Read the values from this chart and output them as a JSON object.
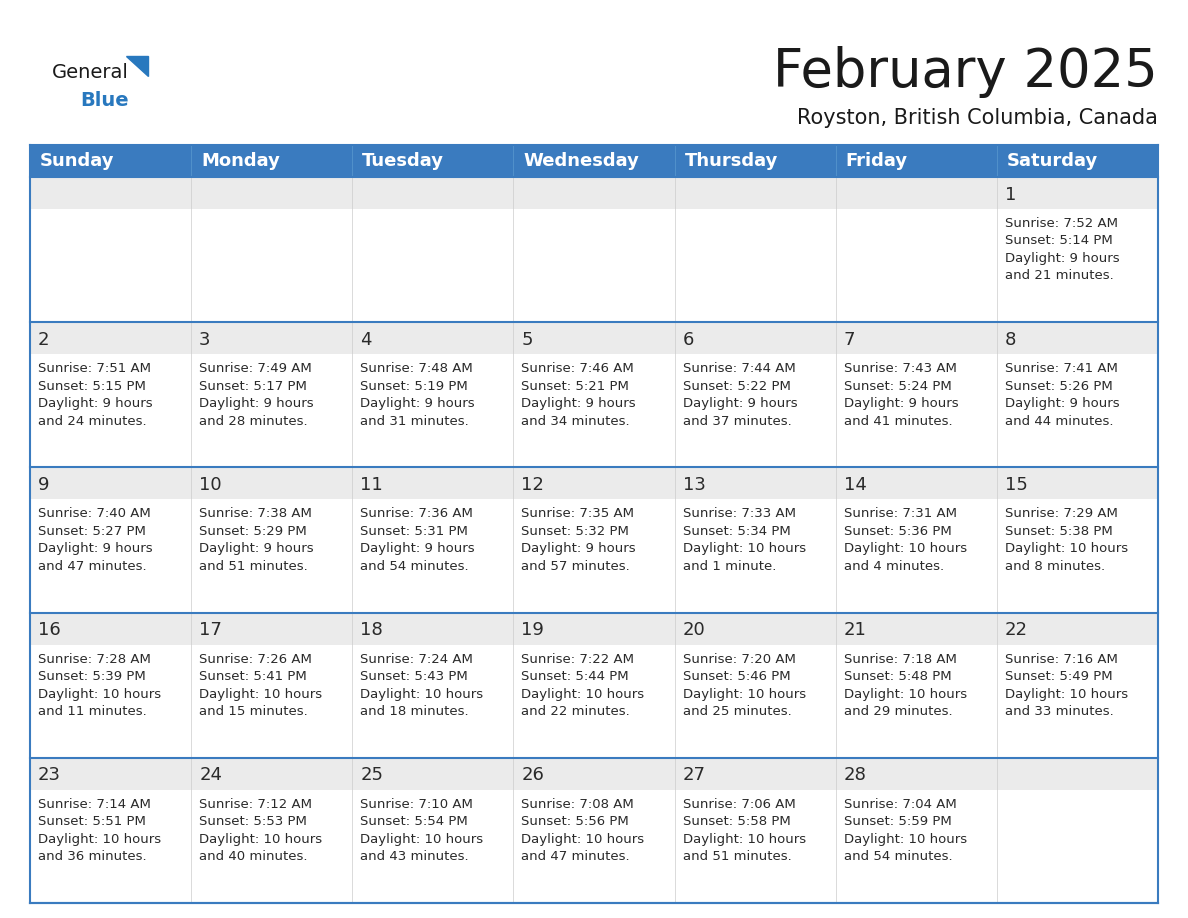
{
  "title": "February 2025",
  "subtitle": "Royston, British Columbia, Canada",
  "header_color": "#3a7bbf",
  "header_text_color": "#ffffff",
  "row_sep_color": "#3a7bbf",
  "cell_bg_white": "#ffffff",
  "cell_bg_gray": "#ebebeb",
  "border_color": "#3a7bbf",
  "day_num_color": "#2a2a2a",
  "cell_text_color": "#2a2a2a",
  "day_headers": [
    "Sunday",
    "Monday",
    "Tuesday",
    "Wednesday",
    "Thursday",
    "Friday",
    "Saturday"
  ],
  "title_fontsize": 38,
  "subtitle_fontsize": 15,
  "header_fontsize": 13,
  "day_num_fontsize": 13,
  "cell_text_fontsize": 9.5,
  "calendar_data": [
    [
      null,
      null,
      null,
      null,
      null,
      null,
      {
        "day": "1",
        "sunrise": "7:52 AM",
        "sunset": "5:14 PM",
        "daylight": "9 hours\nand 21 minutes."
      }
    ],
    [
      {
        "day": "2",
        "sunrise": "7:51 AM",
        "sunset": "5:15 PM",
        "daylight": "9 hours\nand 24 minutes."
      },
      {
        "day": "3",
        "sunrise": "7:49 AM",
        "sunset": "5:17 PM",
        "daylight": "9 hours\nand 28 minutes."
      },
      {
        "day": "4",
        "sunrise": "7:48 AM",
        "sunset": "5:19 PM",
        "daylight": "9 hours\nand 31 minutes."
      },
      {
        "day": "5",
        "sunrise": "7:46 AM",
        "sunset": "5:21 PM",
        "daylight": "9 hours\nand 34 minutes."
      },
      {
        "day": "6",
        "sunrise": "7:44 AM",
        "sunset": "5:22 PM",
        "daylight": "9 hours\nand 37 minutes."
      },
      {
        "day": "7",
        "sunrise": "7:43 AM",
        "sunset": "5:24 PM",
        "daylight": "9 hours\nand 41 minutes."
      },
      {
        "day": "8",
        "sunrise": "7:41 AM",
        "sunset": "5:26 PM",
        "daylight": "9 hours\nand 44 minutes."
      }
    ],
    [
      {
        "day": "9",
        "sunrise": "7:40 AM",
        "sunset": "5:27 PM",
        "daylight": "9 hours\nand 47 minutes."
      },
      {
        "day": "10",
        "sunrise": "7:38 AM",
        "sunset": "5:29 PM",
        "daylight": "9 hours\nand 51 minutes."
      },
      {
        "day": "11",
        "sunrise": "7:36 AM",
        "sunset": "5:31 PM",
        "daylight": "9 hours\nand 54 minutes."
      },
      {
        "day": "12",
        "sunrise": "7:35 AM",
        "sunset": "5:32 PM",
        "daylight": "9 hours\nand 57 minutes."
      },
      {
        "day": "13",
        "sunrise": "7:33 AM",
        "sunset": "5:34 PM",
        "daylight": "10 hours\nand 1 minute."
      },
      {
        "day": "14",
        "sunrise": "7:31 AM",
        "sunset": "5:36 PM",
        "daylight": "10 hours\nand 4 minutes."
      },
      {
        "day": "15",
        "sunrise": "7:29 AM",
        "sunset": "5:38 PM",
        "daylight": "10 hours\nand 8 minutes."
      }
    ],
    [
      {
        "day": "16",
        "sunrise": "7:28 AM",
        "sunset": "5:39 PM",
        "daylight": "10 hours\nand 11 minutes."
      },
      {
        "day": "17",
        "sunrise": "7:26 AM",
        "sunset": "5:41 PM",
        "daylight": "10 hours\nand 15 minutes."
      },
      {
        "day": "18",
        "sunrise": "7:24 AM",
        "sunset": "5:43 PM",
        "daylight": "10 hours\nand 18 minutes."
      },
      {
        "day": "19",
        "sunrise": "7:22 AM",
        "sunset": "5:44 PM",
        "daylight": "10 hours\nand 22 minutes."
      },
      {
        "day": "20",
        "sunrise": "7:20 AM",
        "sunset": "5:46 PM",
        "daylight": "10 hours\nand 25 minutes."
      },
      {
        "day": "21",
        "sunrise": "7:18 AM",
        "sunset": "5:48 PM",
        "daylight": "10 hours\nand 29 minutes."
      },
      {
        "day": "22",
        "sunrise": "7:16 AM",
        "sunset": "5:49 PM",
        "daylight": "10 hours\nand 33 minutes."
      }
    ],
    [
      {
        "day": "23",
        "sunrise": "7:14 AM",
        "sunset": "5:51 PM",
        "daylight": "10 hours\nand 36 minutes."
      },
      {
        "day": "24",
        "sunrise": "7:12 AM",
        "sunset": "5:53 PM",
        "daylight": "10 hours\nand 40 minutes."
      },
      {
        "day": "25",
        "sunrise": "7:10 AM",
        "sunset": "5:54 PM",
        "daylight": "10 hours\nand 43 minutes."
      },
      {
        "day": "26",
        "sunrise": "7:08 AM",
        "sunset": "5:56 PM",
        "daylight": "10 hours\nand 47 minutes."
      },
      {
        "day": "27",
        "sunrise": "7:06 AM",
        "sunset": "5:58 PM",
        "daylight": "10 hours\nand 51 minutes."
      },
      {
        "day": "28",
        "sunrise": "7:04 AM",
        "sunset": "5:59 PM",
        "daylight": "10 hours\nand 54 minutes."
      },
      null
    ]
  ],
  "logo_color_general": "#1a1a1a",
  "logo_color_blue": "#2878be",
  "logo_triangle_color": "#2878be"
}
